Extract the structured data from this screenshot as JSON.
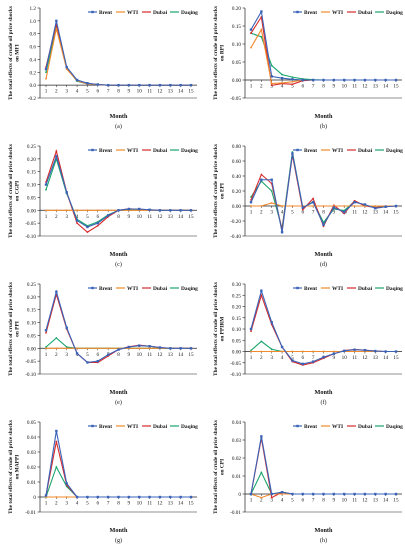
{
  "legend_entries": [
    {
      "name": "Brent",
      "color": "#3a63b8"
    },
    {
      "name": "WTI",
      "color": "#f08a2c"
    },
    {
      "name": "Dubai",
      "color": "#d62b2b"
    },
    {
      "name": "Daqing",
      "color": "#19a56c"
    }
  ],
  "x_title": "Month",
  "chart_data": [
    {
      "type": "line",
      "panel_label": "(a)",
      "ylabel": "The total effects of crude oil price shocks on MFI",
      "x": [
        1,
        2,
        3,
        4,
        5,
        6,
        7,
        8,
        9,
        10,
        11,
        12,
        13,
        14,
        15
      ],
      "ylim": [
        -0.2,
        1.2
      ],
      "yticks": [
        -0.2,
        0,
        0.2,
        0.4,
        0.6,
        0.8,
        1,
        1.2
      ],
      "ytick_labels": [
        "-0.2",
        "0.0",
        "0.2",
        "0.4",
        "0.6",
        "0.8",
        "1.0",
        "1.2"
      ],
      "series": [
        {
          "name": "Brent",
          "values": [
            0.25,
            1.0,
            0.28,
            0.08,
            0.03,
            0.01,
            0,
            0,
            0,
            0,
            0,
            0,
            0,
            0,
            0
          ]
        },
        {
          "name": "WTI",
          "values": [
            0.1,
            0.88,
            0.25,
            0.07,
            0.02,
            0.01,
            0,
            0,
            0,
            0,
            0,
            0,
            0,
            0,
            0
          ]
        },
        {
          "name": "Dubai",
          "values": [
            0.28,
            0.95,
            0.27,
            0.07,
            0.02,
            0.01,
            0,
            0,
            0,
            0,
            0,
            0,
            0,
            0,
            0
          ]
        },
        {
          "name": "Daqing",
          "values": [
            0.2,
            0.92,
            0.27,
            0.06,
            0.02,
            0.01,
            0,
            0,
            0,
            0,
            0,
            0,
            0,
            0,
            0
          ]
        }
      ]
    },
    {
      "type": "line",
      "panel_label": "(b)",
      "ylabel": "The total effects of crude oil price shocks on RPI",
      "x": [
        1,
        2,
        3,
        4,
        5,
        6,
        7,
        8,
        9,
        10,
        11,
        12,
        13,
        14,
        15
      ],
      "ylim": [
        -0.05,
        0.2
      ],
      "yticks": [
        -0.05,
        0,
        0.05,
        0.1,
        0.15,
        0.2
      ],
      "ytick_labels": [
        "-0.05",
        "0.00",
        "0.05",
        "0.10",
        "0.15",
        "0.20"
      ],
      "series": [
        {
          "name": "Brent",
          "values": [
            0.14,
            0.19,
            0.01,
            0.005,
            0.002,
            0,
            0,
            0,
            0,
            0,
            0,
            0,
            0,
            0,
            0
          ]
        },
        {
          "name": "WTI",
          "values": [
            0.09,
            0.14,
            -0.01,
            -0.008,
            -0.005,
            0,
            0,
            0,
            0,
            0,
            0,
            0,
            0,
            0,
            0
          ]
        },
        {
          "name": "Dubai",
          "values": [
            0.13,
            0.175,
            -0.015,
            -0.01,
            -0.012,
            -0.002,
            0,
            0,
            0,
            0,
            0,
            0,
            0,
            0,
            0
          ]
        },
        {
          "name": "Daqing",
          "values": [
            0.13,
            0.12,
            0.04,
            0.015,
            0.008,
            0.003,
            0.001,
            0,
            0,
            0,
            0,
            0,
            0,
            0,
            0
          ]
        }
      ]
    },
    {
      "type": "line",
      "panel_label": "(c)",
      "ylabel": "The total effects of crude oil price shocks on CGPI",
      "x": [
        1,
        2,
        3,
        4,
        5,
        6,
        7,
        8,
        9,
        10,
        11,
        12,
        13,
        14,
        15
      ],
      "ylim": [
        -0.1,
        0.25
      ],
      "yticks": [
        -0.1,
        -0.05,
        0,
        0.05,
        0.1,
        0.15,
        0.2,
        0.25
      ],
      "ytick_labels": [
        "-0.10",
        "-0.05",
        "0.00",
        "0.05",
        "0.10",
        "0.15",
        "0.20",
        "0.25"
      ],
      "series": [
        {
          "name": "Brent",
          "values": [
            0.1,
            0.21,
            0.07,
            -0.04,
            -0.065,
            -0.05,
            -0.02,
            0.0,
            0.005,
            0.005,
            0.002,
            0,
            0,
            0,
            0
          ]
        },
        {
          "name": "WTI",
          "values": [
            0,
            0,
            0,
            0,
            0,
            0,
            0,
            0,
            0,
            0,
            0,
            0,
            0,
            0,
            0
          ]
        },
        {
          "name": "Dubai",
          "values": [
            0.11,
            0.23,
            0.07,
            -0.05,
            -0.085,
            -0.06,
            -0.025,
            0.0,
            0.006,
            0.004,
            0.002,
            0,
            0,
            0,
            0
          ]
        },
        {
          "name": "Daqing",
          "values": [
            0.08,
            0.2,
            0.065,
            -0.035,
            -0.06,
            -0.045,
            -0.018,
            0.0,
            0.004,
            0.003,
            0.001,
            0,
            0,
            0,
            0
          ]
        }
      ]
    },
    {
      "type": "line",
      "panel_label": "(d)",
      "ylabel": "The total effects of crude oil price shocks on EPI",
      "x": [
        1,
        2,
        3,
        4,
        5,
        6,
        7,
        8,
        9,
        10,
        11,
        12,
        13,
        14,
        15
      ],
      "ylim": [
        -0.4,
        0.8
      ],
      "yticks": [
        -0.4,
        -0.2,
        0,
        0.2,
        0.4,
        0.6,
        0.8
      ],
      "ytick_labels": [
        "-0.40",
        "-0.20",
        "0.00",
        "0.20",
        "0.40",
        "0.60",
        "0.80"
      ],
      "series": [
        {
          "name": "Brent",
          "values": [
            0.05,
            0.35,
            0.35,
            -0.35,
            0.7,
            -0.02,
            0.05,
            -0.25,
            -0.02,
            -0.08,
            0.05,
            0.02,
            -0.03,
            -0.01,
            0
          ]
        },
        {
          "name": "WTI",
          "values": [
            0,
            0,
            0.04,
            0,
            0,
            0,
            0,
            0,
            0,
            0,
            0,
            0,
            0,
            0,
            0
          ]
        },
        {
          "name": "Dubai",
          "values": [
            0.08,
            0.42,
            0.3,
            -0.32,
            0.68,
            -0.05,
            0.1,
            -0.27,
            0.01,
            -0.1,
            0.07,
            0.0,
            -0.02,
            -0.01,
            0
          ]
        },
        {
          "name": "Daqing",
          "values": [
            0.12,
            0.33,
            0.2,
            -0.3,
            0.72,
            -0.03,
            0.06,
            -0.22,
            -0.04,
            -0.06,
            0.06,
            0.01,
            -0.02,
            0.0,
            0
          ]
        }
      ]
    },
    {
      "type": "line",
      "panel_label": "(e)",
      "ylabel": "The total effects of crude oil price shocks on PPI",
      "x": [
        1,
        2,
        3,
        4,
        5,
        6,
        7,
        8,
        9,
        10,
        11,
        12,
        13,
        14,
        15
      ],
      "ylim": [
        -0.1,
        0.25
      ],
      "yticks": [
        -0.1,
        -0.05,
        0,
        0.05,
        0.1,
        0.15,
        0.2,
        0.25
      ],
      "ytick_labels": [
        "-0.10",
        "-0.05",
        "0.00",
        "0.05",
        "0.10",
        "0.15",
        "0.20",
        "0.25"
      ],
      "series": [
        {
          "name": "Brent",
          "values": [
            0.07,
            0.22,
            0.08,
            -0.02,
            -0.055,
            -0.05,
            -0.025,
            -0.005,
            0.005,
            0.01,
            0.008,
            0.003,
            0,
            0,
            0
          ]
        },
        {
          "name": "WTI",
          "values": [
            0,
            0,
            0,
            0,
            0,
            0,
            0,
            0,
            0,
            0,
            0,
            0,
            0,
            0,
            0
          ]
        },
        {
          "name": "Dubai",
          "values": [
            0.06,
            0.21,
            0.075,
            -0.02,
            -0.055,
            -0.055,
            -0.03,
            -0.005,
            0.006,
            0.012,
            0.008,
            0.003,
            0,
            0,
            0
          ]
        },
        {
          "name": "Daqing",
          "values": [
            0.005,
            0.04,
            0.005,
            0,
            0,
            0,
            0,
            0,
            0,
            0,
            0,
            0,
            0,
            0,
            0
          ]
        }
      ]
    },
    {
      "type": "line",
      "panel_label": "(f)",
      "ylabel": "The total effects of crude oil price shocks on PPIRM",
      "x": [
        1,
        2,
        3,
        4,
        5,
        6,
        7,
        8,
        9,
        10,
        11,
        12,
        13,
        14,
        15
      ],
      "ylim": [
        -0.1,
        0.3
      ],
      "yticks": [
        -0.1,
        -0.05,
        0,
        0.05,
        0.1,
        0.15,
        0.2,
        0.25,
        0.3
      ],
      "ytick_labels": [
        "-0.10",
        "-0.05",
        "0.00",
        "0.05",
        "0.10",
        "0.15",
        "0.20",
        "0.25",
        "0.30"
      ],
      "series": [
        {
          "name": "Brent",
          "values": [
            0.1,
            0.27,
            0.13,
            0.02,
            -0.04,
            -0.055,
            -0.045,
            -0.025,
            -0.01,
            0.003,
            0.008,
            0.006,
            0.002,
            0,
            0
          ]
        },
        {
          "name": "WTI",
          "values": [
            0,
            0,
            0,
            0,
            0,
            0,
            0,
            0,
            0,
            0,
            0,
            0,
            0,
            0,
            0
          ]
        },
        {
          "name": "Dubai",
          "values": [
            0.09,
            0.25,
            0.12,
            0.02,
            -0.045,
            -0.06,
            -0.05,
            -0.03,
            -0.01,
            0.004,
            0.009,
            0.006,
            0.002,
            0,
            0
          ]
        },
        {
          "name": "Daqing",
          "values": [
            0.005,
            0.045,
            0.01,
            0,
            0,
            0,
            0,
            0,
            0,
            0,
            0,
            0,
            0,
            0,
            0
          ]
        }
      ]
    },
    {
      "type": "line",
      "panel_label": "(g)",
      "ylabel": "The total effects of crude oil price shocks on MAPPI",
      "x": [
        1,
        2,
        3,
        4,
        5,
        6,
        7,
        8,
        9,
        10,
        11,
        12,
        13,
        14,
        15
      ],
      "ylim": [
        -0.01,
        0.05
      ],
      "yticks": [
        -0.01,
        0,
        0.01,
        0.02,
        0.03,
        0.04,
        0.05
      ],
      "ytick_labels": [
        "-0.01",
        "0",
        "0.01",
        "0.02",
        "0.03",
        "0.04",
        "0.05"
      ],
      "series": [
        {
          "name": "Brent",
          "values": [
            0.001,
            0.044,
            0.009,
            0,
            0,
            0,
            0,
            0,
            0,
            0,
            0,
            0,
            0,
            0,
            0
          ]
        },
        {
          "name": "WTI",
          "values": [
            0,
            0,
            0,
            0,
            0,
            0,
            0,
            0,
            0,
            0,
            0,
            0,
            0,
            0,
            0
          ]
        },
        {
          "name": "Dubai",
          "values": [
            0.001,
            0.037,
            0.008,
            0,
            0,
            0,
            0,
            0,
            0,
            0,
            0,
            0,
            0,
            0,
            0
          ]
        },
        {
          "name": "Daqing",
          "values": [
            0.0,
            0.02,
            0.007,
            0,
            0,
            0,
            0,
            0,
            0,
            0,
            0,
            0,
            0,
            0,
            0
          ]
        }
      ]
    },
    {
      "type": "line",
      "panel_label": "(h)",
      "ylabel": "The total effects of crude oil price shocks on CPI",
      "x": [
        1,
        2,
        3,
        4,
        5,
        6,
        7,
        8,
        9,
        10,
        11,
        12,
        13,
        14,
        15
      ],
      "ylim": [
        -0.01,
        0.04
      ],
      "yticks": [
        -0.01,
        0,
        0.01,
        0.02,
        0.03,
        0.04
      ],
      "ytick_labels": [
        "-0.01",
        "0",
        "0.01",
        "0.02",
        "0.03",
        "0.04"
      ],
      "series": [
        {
          "name": "Brent",
          "values": [
            0,
            0.032,
            0,
            0.001,
            0,
            0,
            0,
            0,
            0,
            0,
            0,
            0,
            0,
            0,
            0
          ]
        },
        {
          "name": "WTI",
          "values": [
            0,
            -0.002,
            0,
            0,
            0,
            0,
            0,
            0,
            0,
            0,
            0,
            0,
            0,
            0,
            0
          ]
        },
        {
          "name": "Dubai",
          "values": [
            0,
            0.031,
            -0.002,
            0.001,
            0,
            0,
            0,
            0,
            0,
            0,
            0,
            0,
            0,
            0,
            0
          ]
        },
        {
          "name": "Daqing",
          "values": [
            0,
            0.012,
            0,
            0.001,
            0,
            0,
            0,
            0,
            0,
            0,
            0,
            0,
            0,
            0,
            0
          ]
        }
      ]
    }
  ]
}
